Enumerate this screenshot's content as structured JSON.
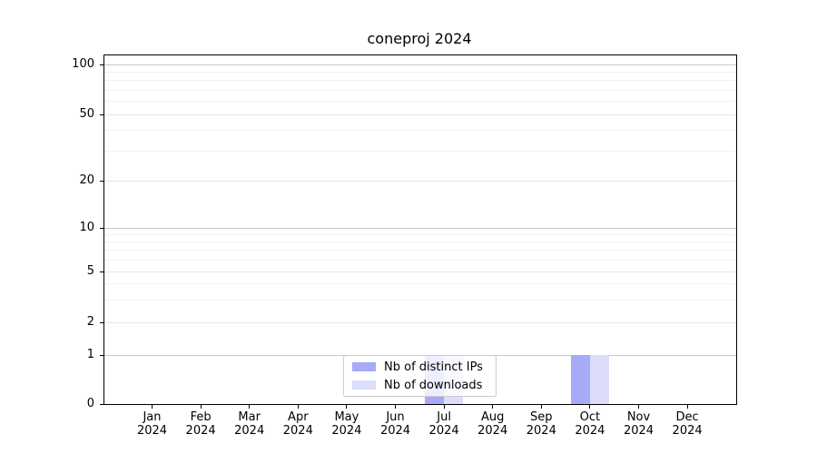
{
  "chart_data": {
    "type": "bar",
    "title": "coneproj 2024",
    "x": {
      "months": [
        "Jan",
        "Feb",
        "Mar",
        "Apr",
        "May",
        "Jun",
        "Jul",
        "Aug",
        "Sep",
        "Oct",
        "Nov",
        "Dec"
      ],
      "year": "2024"
    },
    "y_axis": {
      "scale": "log-like",
      "labeled_ticks": [
        0,
        1,
        2,
        5,
        10,
        20,
        50,
        100
      ],
      "minor_gridlines": [
        3,
        4,
        6,
        7,
        8,
        9,
        30,
        40,
        60,
        70,
        80,
        90
      ],
      "ylim": [
        0,
        115
      ],
      "grid": true
    },
    "series": [
      {
        "name": "Nb of distinct IPs",
        "color": "#a7aaf7",
        "values": [
          0,
          0,
          0,
          0,
          0,
          0,
          1,
          0,
          0,
          1,
          0,
          0
        ]
      },
      {
        "name": "Nb of downloads",
        "color": "#dbddfa",
        "values": [
          0,
          0,
          0,
          0,
          0,
          0,
          1,
          0,
          0,
          1,
          0,
          0
        ]
      }
    ],
    "legend": {
      "position": "lower center",
      "entries": [
        "Nb of distinct IPs",
        "Nb of downloads"
      ]
    }
  },
  "colors": {
    "background": "#ffffff",
    "spine": "#000000",
    "text": "#000000",
    "grid_major": "#c8c8c8",
    "grid_labeled": "#e4e4e4",
    "grid_minor": "#f0f0f0",
    "legend_border": "#cccccc"
  }
}
